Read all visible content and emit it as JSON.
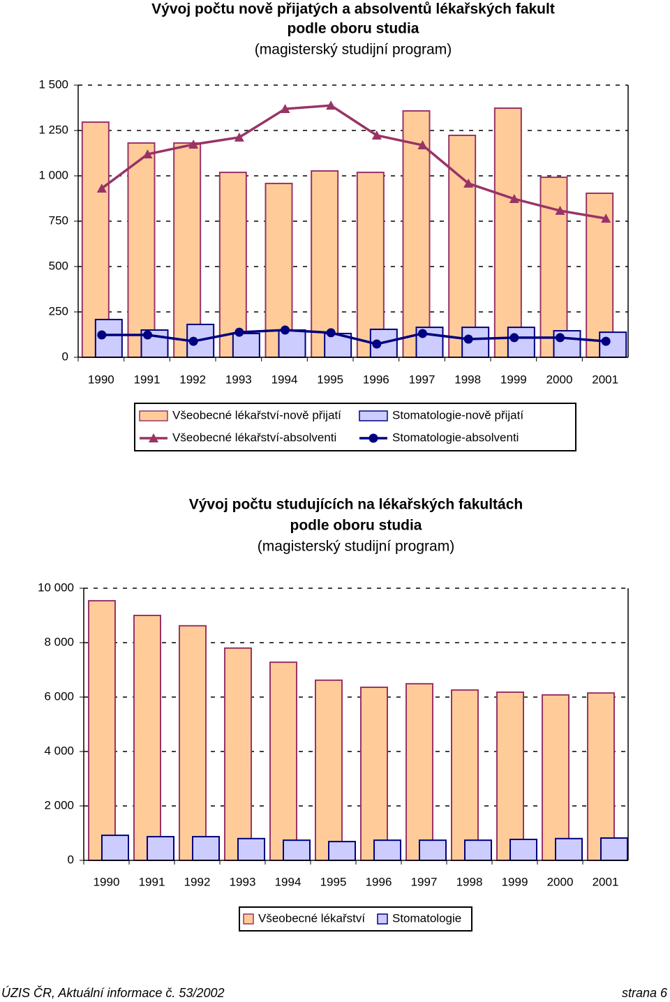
{
  "chart_data": [
    {
      "type": "bar",
      "title": [
        "Vývoj počtu nově přijatých a absolventů lékařských fakult",
        "podle oboru studia"
      ],
      "subtitle": "(magisterský studijní program)",
      "categories": [
        "1990",
        "1991",
        "1992",
        "1993",
        "1994",
        "1995",
        "1996",
        "1997",
        "1998",
        "1999",
        "2000",
        "2001"
      ],
      "series": [
        {
          "name": "Všeobecné lékařství-nově přijatí",
          "type": "bar",
          "color": "#FFCC99",
          "edge": "#993366",
          "values": [
            1296,
            1181,
            1181,
            1019,
            958,
            1027,
            1019,
            1358,
            1223,
            1373,
            992,
            904
          ]
        },
        {
          "name": "Všeobecné lékařství-absolventi",
          "type": "line",
          "marker": "triangle",
          "color": "#993366",
          "values": [
            931,
            1119,
            1173,
            1212,
            1369,
            1388,
            1223,
            1169,
            958,
            873,
            808,
            765
          ]
        },
        {
          "name": "Stomatologie-nově přijatí",
          "type": "bar",
          "color": "#CCCCFF",
          "edge": "#000080",
          "values": [
            208,
            150,
            181,
            131,
            150,
            131,
            154,
            165,
            165,
            165,
            146,
            138
          ]
        },
        {
          "name": "Stomatologie-absolventi",
          "type": "line",
          "marker": "circle",
          "color": "#000080",
          "values": [
            123,
            123,
            88,
            138,
            150,
            135,
            73,
            131,
            100,
            108,
            108,
            88
          ]
        }
      ],
      "ylim": [
        0,
        1500
      ],
      "yticks": [
        0,
        250,
        500,
        750,
        {
          "value": 1000,
          "label": "1 000"
        },
        {
          "value": 1250,
          "label": "1 250"
        },
        {
          "value": 1500,
          "label": "1 500"
        }
      ],
      "grid": true
    },
    {
      "type": "bar",
      "title": [
        "Vývoj počtu studujících na lékařských fakultách",
        "podle oboru studia"
      ],
      "subtitle": "(magisterský studijní program)",
      "categories": [
        "1990",
        "1991",
        "1992",
        "1993",
        "1994",
        "1995",
        "1996",
        "1997",
        "1998",
        "1999",
        "2000",
        "2001"
      ],
      "series": [
        {
          "name": "Všeobecné lékařství",
          "type": "bar",
          "color": "#FFCC99",
          "edge": "#993366",
          "values": [
            9540,
            9000,
            8620,
            7800,
            7280,
            6620,
            6360,
            6490,
            6260,
            6180,
            6080,
            6150
          ]
        },
        {
          "name": "Stomatologie",
          "type": "bar",
          "color": "#CCCCFF",
          "edge": "#000080",
          "values": [
            920,
            870,
            870,
            800,
            740,
            690,
            740,
            740,
            740,
            770,
            800,
            820
          ]
        }
      ],
      "ylim": [
        0,
        10000
      ],
      "yticks": [
        0,
        {
          "value": 2000,
          "label": "2 000"
        },
        {
          "value": 4000,
          "label": "4 000"
        },
        {
          "value": 6000,
          "label": "6 000"
        },
        {
          "value": 8000,
          "label": "8 000"
        },
        {
          "value": 10000,
          "label": "10 000"
        }
      ],
      "grid": true
    }
  ],
  "footer": {
    "left": "ÚZIS ČR, Aktuální informace č. 53/2002",
    "right": "strana 6"
  }
}
